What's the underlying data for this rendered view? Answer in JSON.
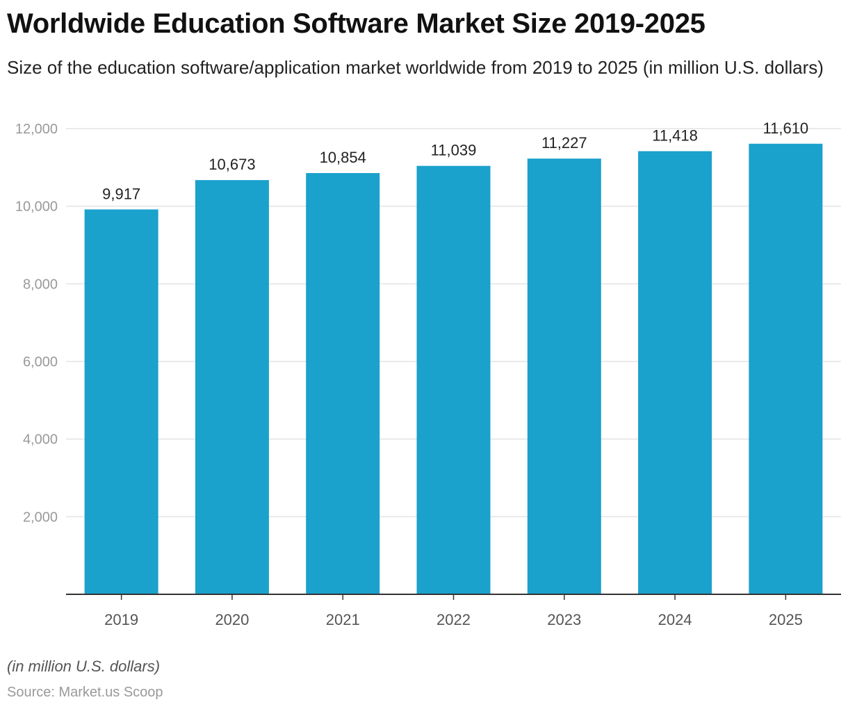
{
  "chart_data": {
    "type": "bar",
    "title": "Worldwide Education Software Market Size 2019-2025",
    "subtitle": "Size of the education software/application market worldwide from 2019 to 2025 (in million U.S. dollars)",
    "categories": [
      "2019",
      "2020",
      "2021",
      "2022",
      "2023",
      "2024",
      "2025"
    ],
    "values": [
      9917,
      10673,
      10854,
      11039,
      11227,
      11418,
      11610
    ],
    "data_labels": [
      "9,917",
      "10,673",
      "10,854",
      "11,039",
      "11,227",
      "11,418",
      "11,610"
    ],
    "ylim": [
      0,
      12000
    ],
    "yticks": [
      2000,
      4000,
      6000,
      8000,
      10000,
      12000
    ],
    "ytick_labels": [
      "2,000",
      "4,000",
      "6,000",
      "8,000",
      "10,000",
      "12,000"
    ],
    "grid": true,
    "bar_color": "#1aa1cc",
    "xlabel": "",
    "ylabel": ""
  },
  "footer": {
    "unit_note": "(in million U.S. dollars)",
    "source": "Source: Market.us Scoop"
  }
}
